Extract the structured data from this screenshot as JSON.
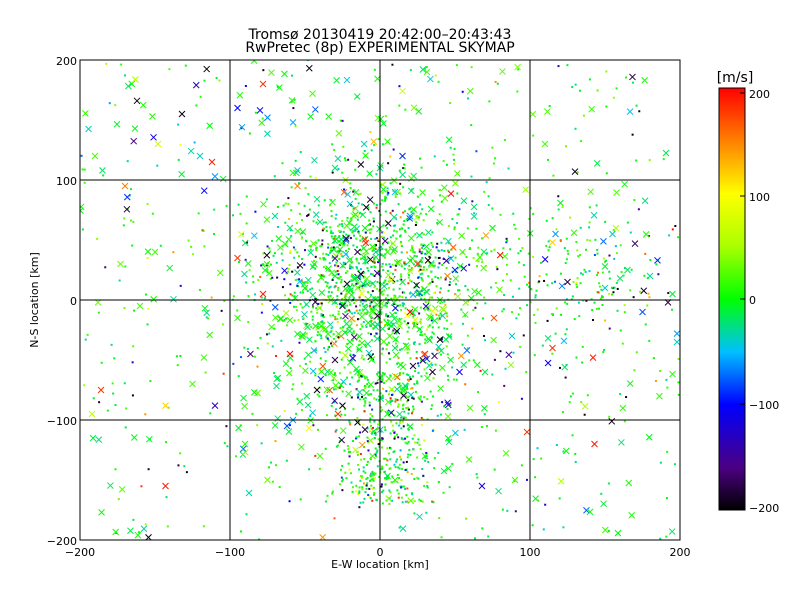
{
  "chart_data": {
    "type": "scatter",
    "title": "Tromsø 20130419 20:42:00–20:43:43",
    "subtitle": "RwPretec (8p) EXPERIMENTAL SKYMAP",
    "xlabel": "E-W location [km]",
    "ylabel": "N-S location [km]",
    "xlim": [
      -200,
      200
    ],
    "ylim": [
      -200,
      200
    ],
    "xticks": [
      "−200",
      "−100",
      "0",
      "100",
      "200"
    ],
    "yticks": [
      "−200",
      "−100",
      "0",
      "100",
      "200"
    ],
    "grid_values": [
      -100,
      0,
      100
    ],
    "colorbar": {
      "label": "[m/s]",
      "range": [
        -200,
        200
      ],
      "ticks": [
        "200",
        "100",
        "0",
        "−100",
        "−200"
      ]
    },
    "points": [
      {
        "x": -162,
        "y": 166,
        "v": -195,
        "m": "x"
      },
      {
        "x": -132,
        "y": 155,
        "v": -195,
        "m": "x"
      },
      {
        "x": -95,
        "y": 160,
        "v": -100,
        "m": "x"
      },
      {
        "x": -80,
        "y": 158,
        "v": -95,
        "m": "x"
      },
      {
        "x": -92,
        "y": 144,
        "v": -60,
        "m": "x"
      },
      {
        "x": -75,
        "y": 152,
        "v": -65,
        "m": "x"
      },
      {
        "x": -58,
        "y": 148,
        "v": -55,
        "m": "x"
      },
      {
        "x": -45,
        "y": 172,
        "v": 20,
        "m": "x"
      },
      {
        "x": -78,
        "y": 180,
        "v": 180,
        "m": "x"
      },
      {
        "x": -148,
        "y": 130,
        "v": 70,
        "m": "x"
      },
      {
        "x": -190,
        "y": 120,
        "v": 20,
        "m": "x"
      },
      {
        "x": -185,
        "y": 108,
        "v": -20,
        "m": "x"
      },
      {
        "x": -170,
        "y": 95,
        "v": 150,
        "m": "x"
      },
      {
        "x": -112,
        "y": 115,
        "v": 190,
        "m": "x"
      },
      {
        "x": -120,
        "y": 120,
        "v": -40,
        "m": "x"
      },
      {
        "x": -110,
        "y": 103,
        "v": -60,
        "m": "x"
      },
      {
        "x": -55,
        "y": 108,
        "v": -45,
        "m": "x"
      },
      {
        "x": -55,
        "y": 95,
        "v": 150,
        "m": "x"
      },
      {
        "x": 15,
        "y": 174,
        "v": 70,
        "m": "x"
      },
      {
        "x": 5,
        "y": 132,
        "v": 10,
        "m": "x"
      },
      {
        "x": 15,
        "y": 120,
        "v": -90,
        "m": "x"
      },
      {
        "x": 110,
        "y": 130,
        "v": 20,
        "m": "x"
      },
      {
        "x": 130,
        "y": 107,
        "v": -190,
        "m": "x"
      },
      {
        "x": 117,
        "y": 55,
        "v": -60,
        "m": "x"
      },
      {
        "x": 115,
        "y": 48,
        "v": 120,
        "m": "x"
      },
      {
        "x": 155,
        "y": 55,
        "v": -40,
        "m": "x"
      },
      {
        "x": 170,
        "y": 47,
        "v": -170,
        "m": "x"
      },
      {
        "x": 185,
        "y": 33,
        "v": -90,
        "m": "x"
      },
      {
        "x": 180,
        "y": 20,
        "v": -30,
        "m": "x"
      },
      {
        "x": 165,
        "y": 25,
        "v": -20,
        "m": "x"
      },
      {
        "x": 160,
        "y": 18,
        "v": -20,
        "m": "x"
      },
      {
        "x": 150,
        "y": 28,
        "v": -10,
        "m": "x"
      },
      {
        "x": 195,
        "y": 5,
        "v": -10,
        "m": "x"
      },
      {
        "x": 192,
        "y": -2,
        "v": -180,
        "m": "x"
      },
      {
        "x": 175,
        "y": -10,
        "v": -80,
        "m": "x"
      },
      {
        "x": 198,
        "y": -28,
        "v": -60,
        "m": "x"
      },
      {
        "x": 198,
        "y": -35,
        "v": -40,
        "m": "x"
      },
      {
        "x": 150,
        "y": 10,
        "v": -40,
        "m": "x"
      },
      {
        "x": 125,
        "y": 15,
        "v": -180,
        "m": "x"
      },
      {
        "x": 142,
        "y": -48,
        "v": 190,
        "m": "x"
      },
      {
        "x": 143,
        "y": -120,
        "v": 190,
        "m": "x"
      },
      {
        "x": 98,
        "y": -110,
        "v": 180,
        "m": "x"
      },
      {
        "x": 115,
        "y": -40,
        "v": 180,
        "m": "x"
      },
      {
        "x": 112,
        "y": -32,
        "v": -20,
        "m": "x"
      },
      {
        "x": 88,
        "y": -30,
        "v": -40,
        "m": "x"
      },
      {
        "x": 76,
        "y": -15,
        "v": 170,
        "m": "x"
      },
      {
        "x": 58,
        "y": -42,
        "v": -70,
        "m": "x"
      },
      {
        "x": 53,
        "y": -60,
        "v": -110,
        "m": "x"
      },
      {
        "x": 68,
        "y": -155,
        "v": -120,
        "m": "x"
      },
      {
        "x": -192,
        "y": -95,
        "v": 60,
        "m": "x"
      },
      {
        "x": -186,
        "y": -75,
        "v": 180,
        "m": "x"
      },
      {
        "x": -143,
        "y": -88,
        "v": 120,
        "m": "x"
      },
      {
        "x": -110,
        "y": -88,
        "v": -130,
        "m": "x"
      },
      {
        "x": -143,
        "y": -155,
        "v": 190,
        "m": "x"
      },
      {
        "x": -62,
        "y": -105,
        "v": -80,
        "m": "x"
      },
      {
        "x": -58,
        "y": -100,
        "v": -60,
        "m": "x"
      },
      {
        "x": -25,
        "y": -88,
        "v": -200,
        "m": "x"
      },
      {
        "x": -15,
        "y": -102,
        "v": -200,
        "m": "x"
      },
      {
        "x": -10,
        "y": -108,
        "v": -180,
        "m": "x"
      },
      {
        "x": -28,
        "y": -95,
        "v": 180,
        "m": "x"
      },
      {
        "x": -42,
        "y": -75,
        "v": -200,
        "m": "x"
      },
      {
        "x": -30,
        "y": -50,
        "v": -180,
        "m": "x"
      },
      {
        "x": -60,
        "y": -45,
        "v": 200,
        "m": "x"
      },
      {
        "x": 22,
        "y": -55,
        "v": -180,
        "m": "x"
      },
      {
        "x": 30,
        "y": -45,
        "v": 180,
        "m": "x"
      },
      {
        "x": 35,
        "y": -60,
        "v": -190,
        "m": "x"
      },
      {
        "x": 40,
        "y": -33,
        "v": -200,
        "m": "x"
      },
      {
        "x": 25,
        "y": 30,
        "v": 180,
        "m": "x"
      },
      {
        "x": 32,
        "y": 33,
        "v": -200,
        "m": "x"
      },
      {
        "x": 50,
        "y": 25,
        "v": -90,
        "m": "x"
      },
      {
        "x": 20,
        "y": -10,
        "v": 200,
        "m": "x"
      },
      {
        "x": -15,
        "y": 40,
        "v": -180,
        "m": "x"
      },
      {
        "x": -25,
        "y": -5,
        "v": -180,
        "m": "x"
      },
      {
        "x": 45,
        "y": 20,
        "v": 150,
        "m": "x"
      },
      {
        "x": -95,
        "y": 35,
        "v": 180,
        "m": "x"
      },
      {
        "x": -78,
        "y": 5,
        "v": 190,
        "m": "x"
      },
      {
        "x": -188,
        "y": -2,
        "v": 30,
        "m": "x"
      },
      {
        "x": -173,
        "y": 30,
        "v": 30,
        "m": "x"
      },
      {
        "x": -160,
        "y": -5,
        "v": 20,
        "m": "x"
      },
      {
        "x": -150,
        "y": 40,
        "v": 20,
        "m": "x"
      },
      {
        "x": -125,
        "y": -70,
        "v": 20,
        "m": "x"
      },
      {
        "x": -95,
        "y": -15,
        "v": 10,
        "m": "x"
      },
      {
        "x": -70,
        "y": 70,
        "v": -30,
        "m": "x"
      },
      {
        "x": -60,
        "y": 60,
        "v": -20,
        "m": "x"
      },
      {
        "x": -40,
        "y": 65,
        "v": -20,
        "m": "x"
      },
      {
        "x": -20,
        "y": 80,
        "v": -40,
        "m": "x"
      },
      {
        "x": 10,
        "y": 90,
        "v": -50,
        "m": "x"
      },
      {
        "x": 20,
        "y": 70,
        "v": -60,
        "m": "x"
      },
      {
        "x": -10,
        "y": 60,
        "v": 0,
        "m": "x"
      },
      {
        "x": 5,
        "y": 40,
        "v": 10,
        "m": "x"
      },
      {
        "x": -30,
        "y": 20,
        "v": -10,
        "m": "x"
      },
      {
        "x": -50,
        "y": 10,
        "v": 0,
        "m": "x"
      },
      {
        "x": 15,
        "y": 15,
        "v": -10,
        "m": "x"
      },
      {
        "x": 40,
        "y": 0,
        "v": 0,
        "m": "x"
      },
      {
        "x": -5,
        "y": -20,
        "v": -10,
        "m": "x"
      },
      {
        "x": -20,
        "y": -35,
        "v": 0,
        "m": "x"
      },
      {
        "x": 10,
        "y": -40,
        "v": -20,
        "m": "x"
      },
      {
        "x": 0,
        "y": -65,
        "v": 0,
        "m": "x"
      },
      {
        "x": -15,
        "y": -60,
        "v": -10,
        "m": "x"
      },
      {
        "x": 15,
        "y": -75,
        "v": 10,
        "m": "x"
      },
      {
        "x": 5,
        "y": -95,
        "v": 0,
        "m": "x"
      },
      {
        "x": -5,
        "y": -130,
        "v": 20,
        "m": "x"
      },
      {
        "x": 10,
        "y": -150,
        "v": 10,
        "m": "x"
      },
      {
        "x": 30,
        "y": -130,
        "v": 10,
        "m": "x"
      },
      {
        "x": 60,
        "y": -90,
        "v": 20,
        "m": "x"
      },
      {
        "x": 70,
        "y": -60,
        "v": -10,
        "m": "x"
      },
      {
        "x": 55,
        "y": 40,
        "v": 20,
        "m": "x"
      },
      {
        "x": 75,
        "y": 60,
        "v": 0,
        "m": "x"
      },
      {
        "x": -40,
        "y": -130,
        "v": 20,
        "m": "x"
      },
      {
        "x": -75,
        "y": -150,
        "v": 30,
        "m": "x"
      },
      {
        "x": -90,
        "y": -120,
        "v": 10,
        "m": "x"
      },
      {
        "x": 90,
        "y": -150,
        "v": 20,
        "m": "x"
      },
      {
        "x": 0,
        "y": 110,
        "v": -30,
        "m": "x"
      },
      {
        "x": -30,
        "y": 110,
        "v": -20,
        "m": "x"
      }
    ]
  }
}
